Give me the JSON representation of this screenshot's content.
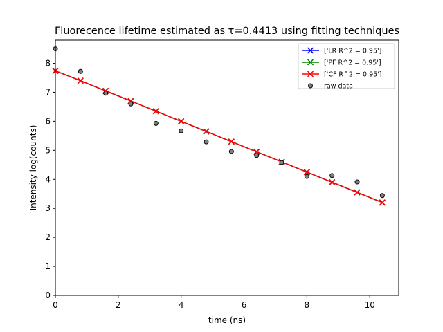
{
  "chart_data": {
    "type": "line",
    "title": "Fluorecence lifetime estimated as τ=0.4413 using fitting techniques",
    "xlabel": "time (ns)",
    "ylabel": "Intensity log(counts)",
    "xlim": [
      0,
      10.92
    ],
    "ylim": [
      0,
      8.8
    ],
    "xticks": [
      0,
      2,
      4,
      6,
      8,
      10
    ],
    "yticks": [
      0,
      1,
      2,
      3,
      4,
      5,
      6,
      7,
      8
    ],
    "grid": false,
    "legend_position": "top-right",
    "x": [
      0,
      0.8,
      1.6,
      2.4,
      3.2,
      4.0,
      4.8,
      5.6,
      6.4,
      7.2,
      8.0,
      8.8,
      9.6,
      10.4
    ],
    "series": [
      {
        "name": "['LR R^2 = 0.95']",
        "type": "line",
        "marker": "x",
        "color": "#0000ff",
        "values": [
          7.74,
          7.4,
          7.05,
          6.7,
          6.35,
          6.0,
          5.65,
          5.3,
          4.95,
          4.6,
          4.25,
          3.9,
          3.55,
          3.2
        ]
      },
      {
        "name": "['PF R^2 = 0.95']",
        "type": "line",
        "marker": "x",
        "color": "#008000",
        "values": [
          7.74,
          7.4,
          7.05,
          6.7,
          6.35,
          6.0,
          5.65,
          5.3,
          4.95,
          4.6,
          4.25,
          3.9,
          3.55,
          3.2
        ]
      },
      {
        "name": "['CF R^2 = 0.95']",
        "type": "line",
        "marker": "x",
        "color": "#ff0000",
        "values": [
          7.74,
          7.4,
          7.05,
          6.7,
          6.35,
          6.0,
          5.65,
          5.3,
          4.95,
          4.6,
          4.25,
          3.9,
          3.55,
          3.2
        ]
      },
      {
        "name": "raw data",
        "type": "scatter",
        "marker": "o",
        "color": "#808080",
        "edge_color": "#000000",
        "values": [
          8.5,
          7.72,
          6.97,
          6.6,
          5.93,
          5.67,
          5.29,
          4.96,
          4.82,
          4.58,
          4.1,
          4.13,
          3.91,
          3.44
        ]
      }
    ]
  }
}
